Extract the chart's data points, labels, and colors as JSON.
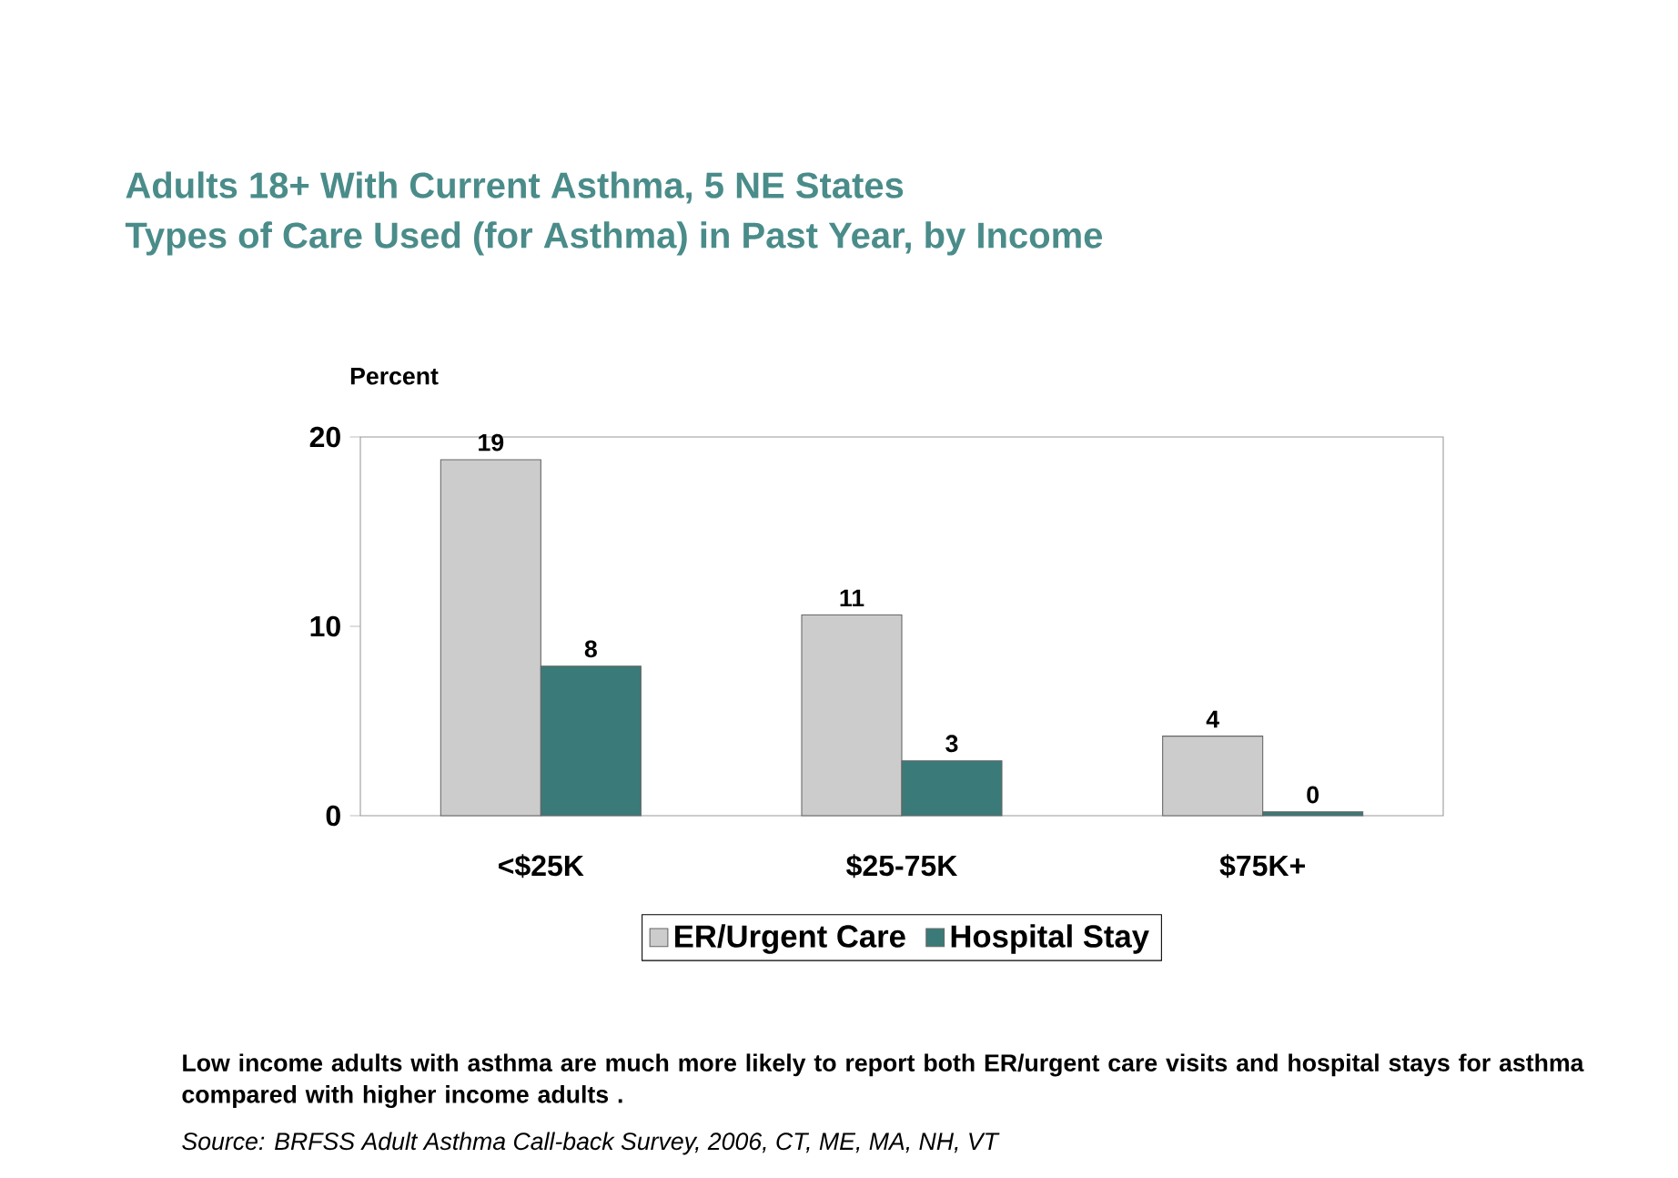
{
  "chart_data": {
    "type": "bar",
    "title": "Adults 18+ With Current Asthma, 5 NE States",
    "subtitle": "Types of Care Used (for Asthma) in Past Year, by Income",
    "ylabel": "Percent",
    "categories": [
      "<$25K",
      "$25-75K",
      "$75K+"
    ],
    "series": [
      {
        "name": "ER/Urgent Care",
        "color": "#cccccc",
        "values": [
          18.8,
          10.6,
          4.2
        ],
        "value_labels": [
          "19",
          "11",
          "4"
        ]
      },
      {
        "name": "Hospital Stay",
        "color": "#3a7a78",
        "values": [
          7.9,
          2.9,
          0.2
        ],
        "value_labels": [
          "8",
          "3",
          "0"
        ]
      }
    ],
    "ylim": [
      0,
      20
    ],
    "yticks": [
      0,
      10,
      20
    ],
    "grid": false,
    "legend": "bottom",
    "annotations": [
      "Low income adults with asthma are much more likely to report both ER/urgent care visits and hospital stays for asthma compared with higher income adults .",
      "Source: BRFSS Adult Asthma Call-back Survey, 2006, CT, ME, MA, NH, VT"
    ]
  }
}
